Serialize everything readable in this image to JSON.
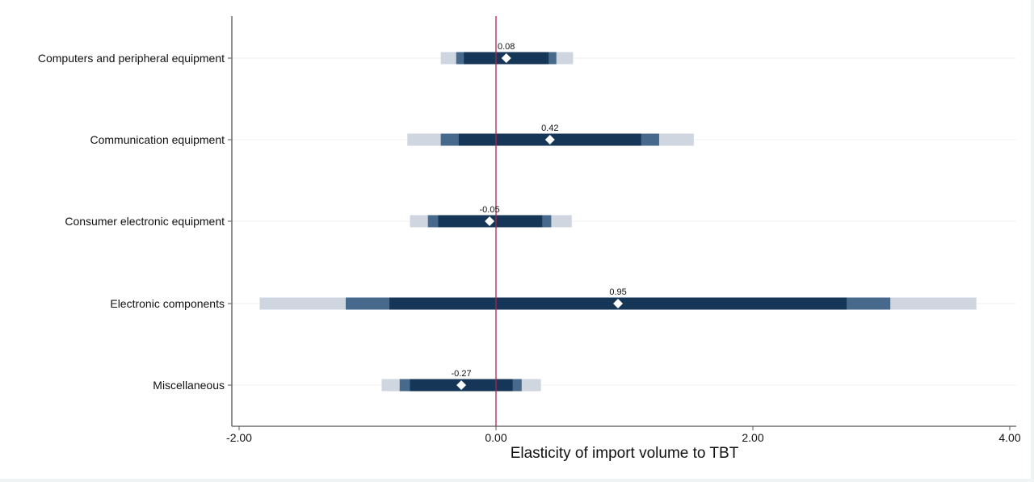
{
  "chart_data": {
    "type": "coefficient-interval",
    "title": "",
    "xlabel": "Elasticity of import volume to TBT",
    "ylabel": "",
    "xlim": [
      -2.05,
      4.05
    ],
    "xticks": [
      -2,
      0,
      2,
      4
    ],
    "xtick_labels": [
      "-2.00",
      "0.00",
      "2.00",
      "4.00"
    ],
    "reference_line": 0,
    "grid": "horizontal light lines at each category",
    "legend": "none",
    "colors": {
      "inner_interval": "#163658",
      "middle_interval": "#46698c",
      "outer_interval": "#cfd6e0",
      "point": "#ffffff",
      "reference_line": "#b1244c",
      "axis": "#555555",
      "grid": "#eef1f3"
    },
    "categories": [
      "Computers and peripheral equipment",
      "Communication equipment",
      "Consumer electronic equipment",
      "Electronic components",
      "Miscellaneous"
    ],
    "series": [
      {
        "name": "Computers and peripheral equipment",
        "estimate": 0.08,
        "label": "0.08",
        "inner": [
          -0.25,
          0.41
        ],
        "middle": [
          -0.31,
          0.47
        ],
        "outer": [
          -0.43,
          0.6
        ]
      },
      {
        "name": "Communication equipment",
        "estimate": 0.42,
        "label": "0.42",
        "inner": [
          -0.29,
          1.13
        ],
        "middle": [
          -0.43,
          1.27
        ],
        "outer": [
          -0.69,
          1.54
        ]
      },
      {
        "name": "Consumer electronic equipment",
        "estimate": -0.05,
        "label": "-0.05",
        "inner": [
          -0.45,
          0.36
        ],
        "middle": [
          -0.53,
          0.43
        ],
        "outer": [
          -0.67,
          0.59
        ]
      },
      {
        "name": "Electronic components",
        "estimate": 0.95,
        "label": "0.95",
        "inner": [
          -0.83,
          2.73
        ],
        "middle": [
          -1.17,
          3.07
        ],
        "outer": [
          -1.84,
          3.74
        ]
      },
      {
        "name": "Miscellaneous",
        "estimate": -0.27,
        "label": "-0.27",
        "inner": [
          -0.67,
          0.13
        ],
        "middle": [
          -0.75,
          0.2
        ],
        "outer": [
          -0.89,
          0.35
        ]
      }
    ]
  }
}
